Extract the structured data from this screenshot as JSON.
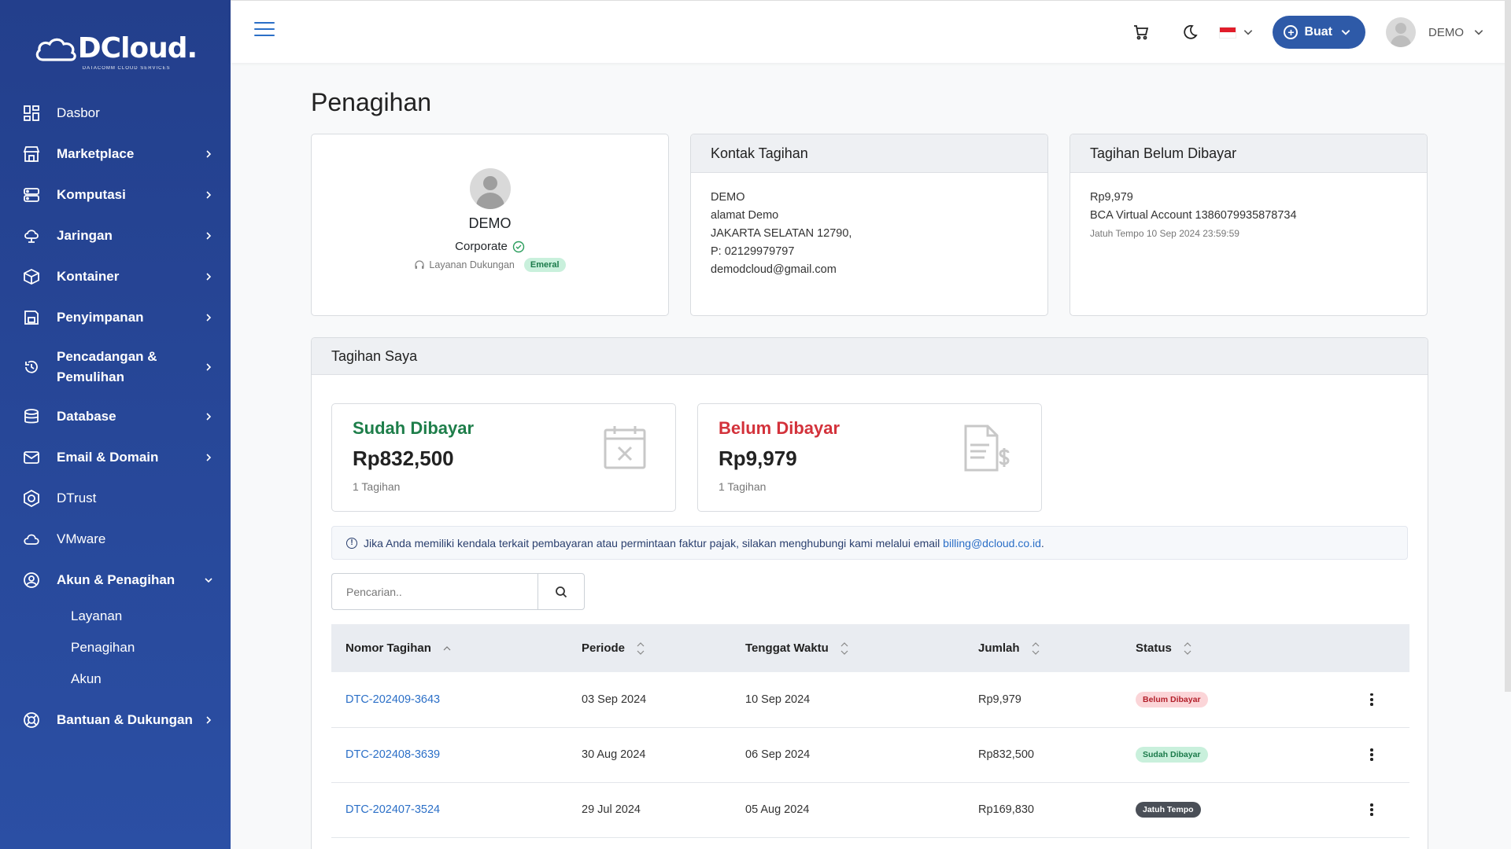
{
  "brand": {
    "name": "DCloud.",
    "tagline": "DATACOMM CLOUD SERVICES"
  },
  "sidebar": {
    "items": [
      {
        "label": "Dasbor",
        "icon": "dashboard-icon",
        "chevron": false
      },
      {
        "label": "Marketplace",
        "icon": "store-icon",
        "chevron": true
      },
      {
        "label": "Komputasi",
        "icon": "server-icon",
        "chevron": true
      },
      {
        "label": "Jaringan",
        "icon": "cloud-network-icon",
        "chevron": true
      },
      {
        "label": "Kontainer",
        "icon": "box-icon",
        "chevron": true
      },
      {
        "label": "Penyimpanan",
        "icon": "storage-icon",
        "chevron": true
      },
      {
        "label": "Pencadangan & Pemulihan",
        "icon": "backup-icon",
        "chevron": true
      },
      {
        "label": "Database",
        "icon": "database-icon",
        "chevron": true
      },
      {
        "label": "Email & Domain",
        "icon": "mail-icon",
        "chevron": true
      },
      {
        "label": "DTrust",
        "icon": "shield-icon",
        "chevron": false
      },
      {
        "label": "VMware",
        "icon": "cloud-icon",
        "chevron": false
      },
      {
        "label": "Akun & Penagihan",
        "icon": "user-circle-icon",
        "chevron": true,
        "expanded": true
      },
      {
        "label": "Bantuan & Dukungan",
        "icon": "lifebuoy-icon",
        "chevron": true
      }
    ],
    "subitems": [
      "Layanan",
      "Penagihan",
      "Akun"
    ]
  },
  "header": {
    "create_label": "Buat",
    "user_name": "DEMO",
    "language_flag_colors": [
      "#e11d2a",
      "#ffffff"
    ]
  },
  "page": {
    "title": "Penagihan"
  },
  "profile": {
    "name": "DEMO",
    "type": "Corporate",
    "support_label": "Layanan Dukungan",
    "support_tier": "Emeral"
  },
  "contact": {
    "title": "Kontak Tagihan",
    "name": "DEMO",
    "address": "alamat Demo",
    "city": "JAKARTA SELATAN 12790,",
    "phone": "P: 02129979797",
    "email": "demodcloud@gmail.com"
  },
  "unpaid": {
    "title": "Tagihan Belum Dibayar",
    "amount": "Rp9,979",
    "va": "BCA Virtual Account 1386079935878734",
    "due": "Jatuh Tempo 10 Sep 2024 23:59:59"
  },
  "my_bills": {
    "title": "Tagihan Saya",
    "paid": {
      "title": "Sudah Dibayar",
      "amount": "Rp832,500",
      "count": "1 Tagihan"
    },
    "unpaid": {
      "title": "Belum Dibayar",
      "amount": "Rp9,979",
      "count": "1 Tagihan"
    },
    "info_text": "Jika Anda memiliki kendala terkait pembayaran atau permintaan faktur pajak, silakan menghubungi kami melalui email",
    "info_email": "billing@dcloud.co.id",
    "info_end": ".",
    "search_placeholder": "Pencarian..",
    "columns": [
      "Nomor Tagihan",
      "Periode",
      "Tenggat Waktu",
      "Jumlah",
      "Status"
    ],
    "rows": [
      {
        "number": "DTC-202409-3643",
        "period": "03 Sep 2024",
        "due": "10 Sep 2024",
        "amount": "Rp9,979",
        "status": "Belum Dibayar",
        "status_bg": "#fbd5d8",
        "status_fg": "#b3202b"
      },
      {
        "number": "DTC-202408-3639",
        "period": "30 Aug 2024",
        "due": "06 Sep 2024",
        "amount": "Rp832,500",
        "status": "Sudah Dibayar",
        "status_bg": "#c9f0dc",
        "status_fg": "#1b7a4a"
      },
      {
        "number": "DTC-202407-3524",
        "period": "29 Jul 2024",
        "due": "05 Aug 2024",
        "amount": "Rp169,830",
        "status": "Jatuh Tempo",
        "status_bg": "#4a4f57",
        "status_fg": "#ffffff"
      }
    ]
  }
}
